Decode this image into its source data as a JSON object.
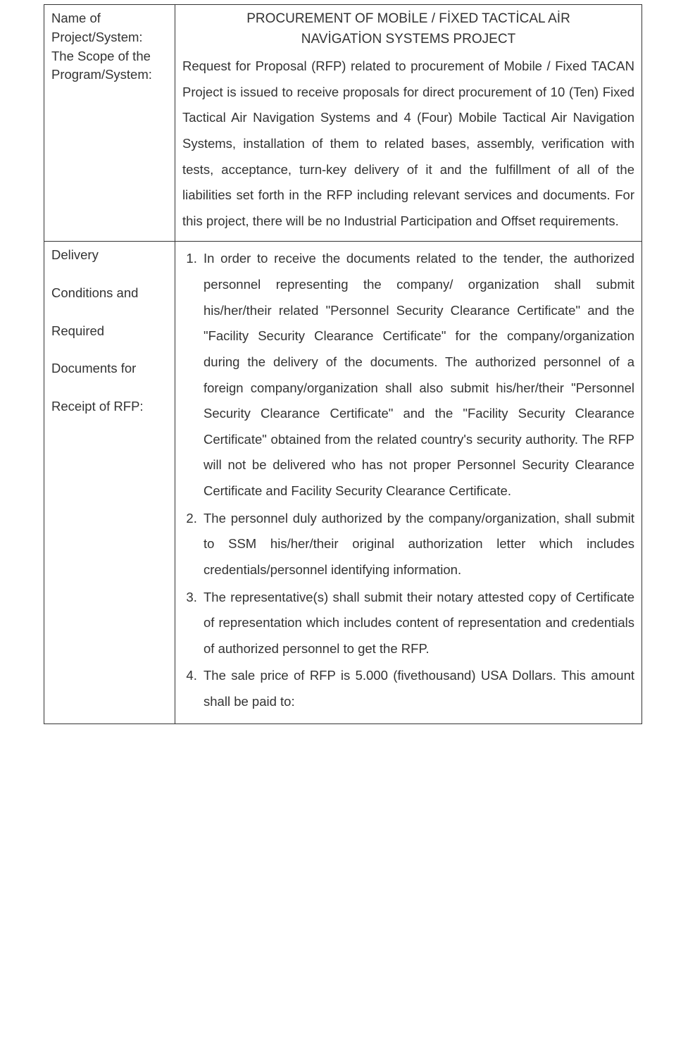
{
  "row1": {
    "label_line1": "Name of",
    "label_line2": "Project/System:",
    "label_line3": "The Scope of the",
    "label_line4": "Program/System:",
    "title_line1": "PROCUREMENT OF MOBİLE / FİXED TACTİCAL AİR",
    "title_line2": "NAVİGATİON SYSTEMS PROJECT",
    "body": "Request for Proposal (RFP) related to procurement of Mobile / Fixed TACAN Project is issued to receive proposals for direct procurement of 10 (Ten) Fixed Tactical Air Navigation Systems and 4 (Four) Mobile Tactical Air Navigation Systems, installation of them to related bases, assembly, verification with tests, acceptance, turn-key delivery of it and the fulfillment of all of the liabilities set forth in the RFP including relevant services and documents. For this project, there will be no Industrial Participation and Offset requirements."
  },
  "row2": {
    "label_line1": "Delivery",
    "label_line2": "Conditions and",
    "label_line3": "Required",
    "label_line4": "Documents for",
    "label_line5": "Receipt of RFP:",
    "items": {
      "i1": "In order to receive the documents related to the tender, the authorized personnel representing the company/ organization shall submit his/her/their related \"Personnel Security Clearance Certificate\" and the \"Facility Security Clearance Certificate\" for the company/organization during the delivery of the documents. The authorized personnel of a foreign company/organization shall also submit his/her/their \"Personnel Security Clearance Certificate\" and the \"Facility Security Clearance Certificate\" obtained from the related country's security authority. The RFP will not be delivered who has not proper Personnel Security Clearance Certificate and Facility Security Clearance Certificate.",
      "i2": "The personnel duly authorized by the company/organization, shall submit to SSM his/her/their original authorization letter which includes credentials/personnel identifying information.",
      "i3": "The representative(s) shall submit their notary attested copy of Certificate of representation which includes content of representation and credentials of authorized personnel to get the RFP.",
      "i4": "The sale price of RFP is 5.000 (fivethousand) USA Dollars. This amount shall be paid to:"
    }
  },
  "colors": {
    "text": "#333333",
    "border": "#333333",
    "background": "#ffffff"
  },
  "font": {
    "family": "Arial",
    "body_size_pt": 14,
    "line_height": 1.98
  }
}
